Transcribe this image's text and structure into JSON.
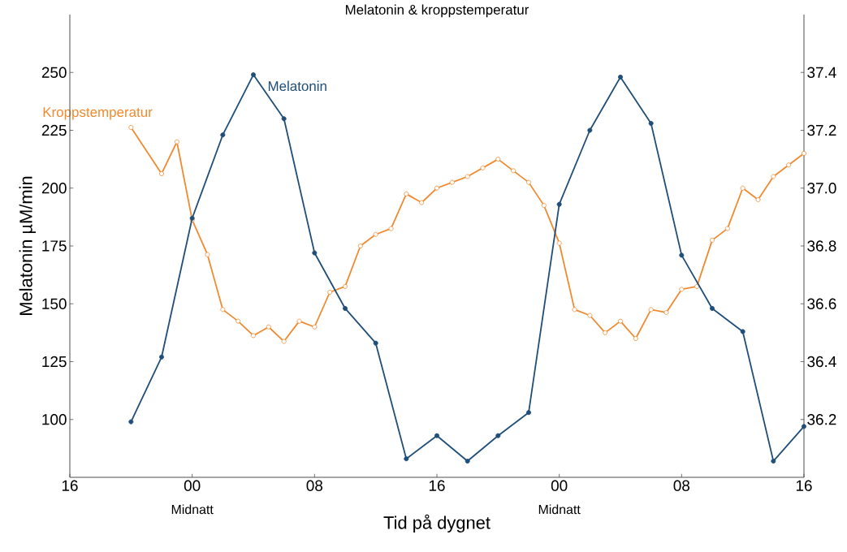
{
  "chart_data": {
    "type": "line",
    "title": "Melatonin & kroppstemperatur",
    "xlabel": "Tid på dygnet",
    "ylabel": "Melatonin µM/min",
    "xlim": [
      "2000-01-01T16:00",
      "2000-01-03T16:00"
    ],
    "xticks": [
      {
        "value": "2000-01-01T16:00",
        "label": "16"
      },
      {
        "value": "2000-01-02T00:00",
        "label": "00"
      },
      {
        "value": "2000-01-02T08:00",
        "label": "08"
      },
      {
        "value": "2000-01-02T16:00",
        "label": "16"
      },
      {
        "value": "2000-01-03T00:00",
        "label": "00"
      },
      {
        "value": "2000-01-03T08:00",
        "label": "08"
      },
      {
        "value": "2000-01-03T16:00",
        "label": "16"
      }
    ],
    "ylim": [
      75,
      275
    ],
    "yticks": [
      100,
      125,
      150,
      175,
      200,
      225,
      250
    ],
    "y2lim": [
      36.0,
      37.6
    ],
    "y2ticks": [
      {
        "value": 36.2,
        "label": "36.2"
      },
      {
        "value": 36.4,
        "label": "36.4"
      },
      {
        "value": 36.6,
        "label": "36.6"
      },
      {
        "value": 36.8,
        "label": "36.8"
      },
      {
        "value": 37.0,
        "label": "37.0"
      },
      {
        "value": 37.2,
        "label": "37.2"
      },
      {
        "value": 37.4,
        "label": "37.4"
      }
    ],
    "grid": false,
    "marker": "circle",
    "line_style": "solid",
    "annotations": [
      "Midnatt",
      "Midnatt"
    ],
    "series": [
      {
        "name": "Melatonin",
        "color": "#1f4e79",
        "x": [
          "2000-01-01T20:00",
          "2000-01-01T22:00",
          "2000-01-02T00:00",
          "2000-01-02T02:00",
          "2000-01-02T04:00",
          "2000-01-02T06:00",
          "2000-01-02T08:00",
          "2000-01-02T10:00",
          "2000-01-02T12:00",
          "2000-01-02T14:00",
          "2000-01-02T16:00",
          "2000-01-02T18:00",
          "2000-01-02T20:00",
          "2000-01-02T22:00",
          "2000-01-03T00:00",
          "2000-01-03T02:00",
          "2000-01-03T04:00",
          "2000-01-03T06:00",
          "2000-01-03T08:00",
          "2000-01-03T10:00",
          "2000-01-03T12:00",
          "2000-01-03T14:00",
          "2000-01-03T16:00"
        ],
        "values": [
          99,
          127,
          187,
          223,
          249,
          230,
          172,
          148,
          133,
          83,
          93,
          82,
          93,
          103,
          193,
          225,
          248,
          228,
          171,
          148,
          138,
          82,
          97
        ]
      },
      {
        "name": "Kroppstemperatur",
        "color": "#f08a30",
        "axis": "y2",
        "x": [
          "2000-01-01T20:00",
          "2000-01-01T22:00",
          "2000-01-01T23:00",
          "2000-01-02T00:00",
          "2000-01-02T01:00",
          "2000-01-02T02:00",
          "2000-01-02T03:00",
          "2000-01-02T04:00",
          "2000-01-02T05:00",
          "2000-01-02T06:00",
          "2000-01-02T07:00",
          "2000-01-02T08:00",
          "2000-01-02T09:00",
          "2000-01-02T10:00",
          "2000-01-02T11:00",
          "2000-01-02T12:00",
          "2000-01-02T13:00",
          "2000-01-02T14:00",
          "2000-01-02T15:00",
          "2000-01-02T16:00",
          "2000-01-02T17:00",
          "2000-01-02T18:00",
          "2000-01-02T19:00",
          "2000-01-02T20:00",
          "2000-01-02T21:00",
          "2000-01-02T22:00",
          "2000-01-02T23:00",
          "2000-01-03T00:00",
          "2000-01-03T01:00",
          "2000-01-03T02:00",
          "2000-01-03T03:00",
          "2000-01-03T04:00",
          "2000-01-03T05:00",
          "2000-01-03T06:00",
          "2000-01-03T07:00",
          "2000-01-03T08:00",
          "2000-01-03T09:00",
          "2000-01-03T10:00",
          "2000-01-03T11:00",
          "2000-01-03T12:00",
          "2000-01-03T13:00",
          "2000-01-03T14:00",
          "2000-01-03T15:00",
          "2000-01-03T16:00"
        ],
        "values": [
          37.21,
          37.05,
          37.16,
          36.89,
          36.77,
          36.58,
          36.54,
          36.49,
          36.52,
          36.47,
          36.54,
          36.52,
          36.64,
          36.66,
          36.8,
          36.84,
          36.86,
          36.98,
          36.95,
          37.0,
          37.02,
          37.04,
          37.07,
          37.1,
          37.06,
          37.02,
          36.94,
          36.81,
          36.58,
          36.56,
          36.5,
          36.54,
          36.48,
          36.58,
          36.57,
          36.65,
          36.66,
          36.82,
          36.86,
          37.0,
          36.96,
          37.04,
          37.08,
          37.12
        ]
      }
    ]
  }
}
